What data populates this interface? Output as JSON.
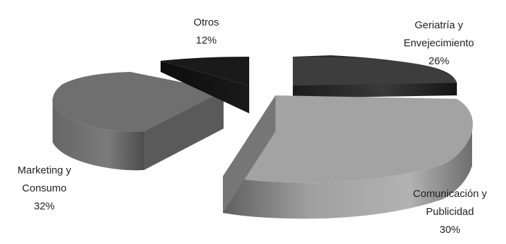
{
  "chart_data": {
    "type": "pie",
    "style": "3d-exploded",
    "title": "",
    "slices": [
      {
        "label_lines": [
          "Geriatría y",
          "Envejecimiento"
        ],
        "value_label": "26%",
        "value": 26,
        "color": "#2e2e2e"
      },
      {
        "label_lines": [
          "Comunicación y",
          "Publicidad"
        ],
        "value_label": "30%",
        "value": 30,
        "color": "#9a9a9a"
      },
      {
        "label_lines": [
          "Marketing y",
          "Consumo"
        ],
        "value_label": "32%",
        "value": 32,
        "color": "#6f6f6f"
      },
      {
        "label_lines": [
          "Otros"
        ],
        "value_label": "12%",
        "value": 12,
        "color": "#151515"
      }
    ]
  }
}
